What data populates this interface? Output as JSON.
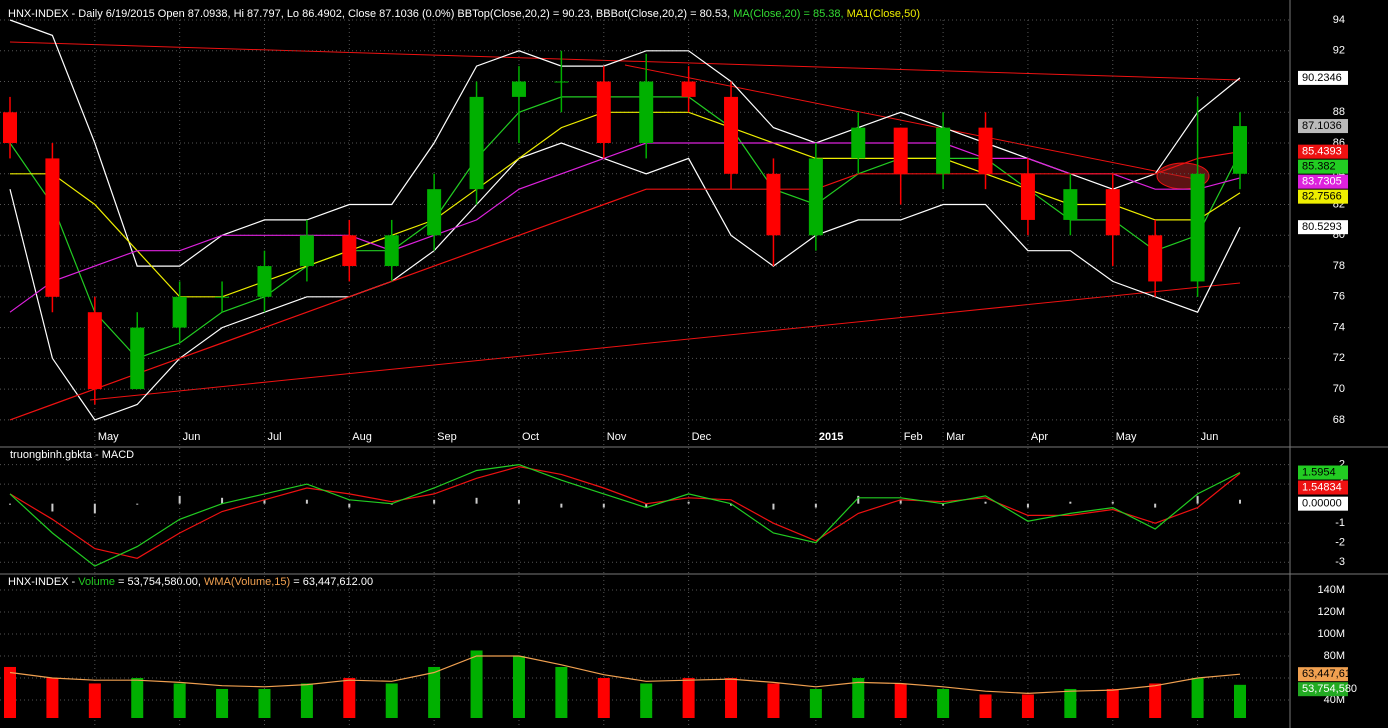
{
  "chart_data": {
    "type": "candlestick",
    "header": [
      {
        "text": "HNX-INDEX - Daily 6/19/2015 Open 87.0938, Hi 87.797, Lo 86.4902, Close 87.1036 (0.0%) BBTop(Close,20,2) = 90.23, BBBot(Close,20,2) = 80.53, ",
        "color": "#ffffff"
      },
      {
        "text": "MA(Close,20) = 85.38, ",
        "color": "#33dd33"
      },
      {
        "text": "MA1(Close,50)",
        "color": "#eeee00"
      }
    ],
    "categories": [
      null,
      null,
      "May",
      null,
      "Jun",
      null,
      "Jul",
      null,
      "Aug",
      null,
      "Sep",
      null,
      "Oct",
      null,
      "Nov",
      null,
      "Dec",
      null,
      null,
      "2015",
      null,
      "Feb",
      "Mar",
      null,
      "Apr",
      null,
      "May",
      null,
      "Jun",
      null
    ],
    "open": [
      88,
      85,
      75,
      70,
      74,
      76,
      76,
      78,
      80,
      78,
      80,
      83,
      89,
      90,
      90,
      86,
      90,
      89,
      84,
      80,
      85,
      87,
      84,
      87,
      84,
      81,
      83,
      80,
      77,
      84
    ],
    "high": [
      89,
      86,
      76,
      75,
      77,
      77,
      79,
      81,
      81,
      81,
      84,
      90,
      91,
      92,
      91,
      91.8,
      91,
      90,
      85,
      86,
      88,
      87,
      88,
      88,
      85,
      84,
      84,
      81,
      89,
      88
    ],
    "low": [
      85,
      75,
      69,
      70,
      73,
      75,
      75,
      77,
      77,
      77,
      79,
      82,
      86,
      88,
      85,
      85,
      88,
      83,
      78,
      79,
      84,
      82,
      83,
      83,
      80,
      80,
      78,
      76,
      76,
      83
    ],
    "close": [
      86,
      76,
      70,
      74,
      76,
      76,
      78,
      80,
      78,
      80,
      83,
      89,
      90,
      90,
      86,
      90,
      89,
      84,
      80,
      85,
      87,
      84,
      87,
      84,
      81,
      83,
      80,
      77,
      84,
      87.1036
    ],
    "up_color": "#00b000",
    "down_color": "#ff0000",
    "ylim": [
      66.3,
      95.3
    ],
    "yticks": [
      68,
      70,
      72,
      74,
      76,
      78,
      80,
      82,
      84,
      86,
      88,
      90,
      92,
      94
    ],
    "grid": true,
    "series": [
      {
        "name": "BBTop(Close,20,2)",
        "color": "#ffffff",
        "values": [
          94,
          93,
          86,
          78,
          78,
          80,
          81,
          81,
          82,
          82,
          86,
          91,
          92,
          91,
          91,
          92,
          92,
          90,
          87,
          86,
          87,
          88,
          87,
          86,
          85,
          84,
          83,
          84,
          88,
          90.2346
        ]
      },
      {
        "name": "BBBot(Close,20,2)",
        "color": "#ffffff",
        "values": [
          83,
          72,
          68,
          69,
          72,
          74,
          75,
          76,
          76,
          77,
          79,
          82,
          85,
          86,
          85,
          84,
          85,
          80,
          78,
          80,
          81,
          81,
          82,
          82,
          79,
          79,
          77,
          76,
          75,
          80.5293
        ]
      },
      {
        "name": "MA(Close,20)",
        "color": "#22cc22",
        "values": [
          86,
          82,
          75,
          72,
          73,
          75,
          76,
          78,
          79,
          79,
          81,
          85,
          88,
          89,
          89,
          89,
          89,
          87,
          83,
          82,
          84,
          85,
          85,
          85,
          83,
          81,
          81,
          79,
          80,
          85.382
        ]
      },
      {
        "name": "MA1(Close,50)",
        "color": "#eeee00",
        "values": [
          84,
          84,
          82,
          79,
          76,
          76,
          77,
          78,
          79,
          80,
          81,
          83,
          85,
          87,
          88,
          88,
          88,
          87,
          86,
          85,
          85,
          85,
          85,
          84,
          83,
          82,
          82,
          81,
          81,
          82.7566
        ]
      },
      {
        "color": "#dd22dd",
        "values": [
          75,
          77,
          78,
          79,
          79,
          80,
          80,
          80,
          80,
          79,
          80,
          81,
          83,
          84,
          85,
          86,
          86,
          86,
          86,
          86,
          86,
          86,
          86,
          85,
          85,
          84,
          84,
          83,
          83,
          83.7305
        ]
      },
      {
        "color": "#ee1111",
        "values": [
          68,
          69,
          70,
          71,
          72,
          73,
          74,
          75,
          76,
          77,
          78,
          79,
          80,
          81,
          82,
          83,
          83,
          83,
          83,
          83,
          84,
          84,
          84,
          84,
          84,
          84,
          84,
          84,
          85,
          85.4393
        ]
      }
    ],
    "last_values": [
      {
        "value": 90.2346,
        "color": "#ffffff"
      },
      {
        "value": 87.1036,
        "color": "#bbbbbb"
      },
      {
        "value": 85.4393,
        "color": "#ee1111"
      },
      {
        "value": 85.382,
        "color": "#22cc22"
      },
      {
        "value": 83.7305,
        "color": "#dd22dd"
      },
      {
        "value": 82.7566,
        "color": "#eeee00"
      },
      {
        "value": 80.5293,
        "color": "#ffffff"
      }
    ],
    "macd": {
      "title": "truongbinh.gbkta - MACD",
      "ylim": [
        -3.5,
        2.8
      ],
      "yticks": [
        -3,
        -2,
        -1,
        1,
        2
      ],
      "macd": {
        "color": "#22cc22",
        "values": [
          0.5,
          -1.5,
          -3.2,
          -2.2,
          -0.8,
          0,
          0.5,
          1,
          0.2,
          0,
          0.8,
          1.7,
          2,
          1.2,
          0.5,
          -0.2,
          0.5,
          0,
          -1.5,
          -2,
          0.3,
          0.3,
          0,
          0.4,
          -0.9,
          -0.5,
          -0.2,
          -1.3,
          0.5,
          1.5954
        ]
      },
      "signal": {
        "color": "#ee1111",
        "values": [
          0.5,
          -0.8,
          -2.3,
          -2.8,
          -1.5,
          -0.4,
          0.2,
          0.8,
          0.5,
          0.1,
          0.5,
          1.3,
          1.9,
          1.5,
          0.8,
          0,
          0.3,
          0.2,
          -1,
          -1.9,
          -0.5,
          0.2,
          0.1,
          0.3,
          -0.6,
          -0.6,
          -0.3,
          -1,
          -0.2,
          1.54834
        ]
      },
      "histogram": {
        "color": "#cccccc",
        "values": [
          0,
          -0.4,
          -0.5,
          0,
          0.4,
          0.3,
          0.2,
          0.2,
          -0.2,
          0,
          0.2,
          0.3,
          0.2,
          -0.2,
          -0.2,
          -0.2,
          0.1,
          -0.1,
          -0.3,
          -0.2,
          0.4,
          0.2,
          -0.1,
          0.1,
          -0.2,
          0.1,
          0.1,
          -0.2,
          0.4,
          0.2
        ]
      },
      "last_values": [
        {
          "value": 1.5954,
          "color": "#22cc22"
        },
        {
          "value": 1.54834,
          "color": "#ee1111"
        },
        {
          "value": 0,
          "label": "0.00000",
          "color": "#ffffff"
        }
      ]
    },
    "volume": {
      "header": [
        {
          "text": "HNX-INDEX - ",
          "color": "#ffffff"
        },
        {
          "text": "Volume",
          "color": "#22cc22"
        },
        {
          "text": " = 53,754,580.00, ",
          "color": "#ffffff"
        },
        {
          "text": "WMA(Volume,15)",
          "color": "#f0a050"
        },
        {
          "text": " = 63,447,612.00",
          "color": "#ffffff"
        }
      ],
      "ylim": [
        23600000,
        152700000
      ],
      "yticks": [
        {
          "value": 40000000,
          "label": "40M"
        },
        {
          "value": 60000000,
          "label": "60M"
        },
        {
          "value": 80000000,
          "label": "80M"
        },
        {
          "value": 100000000,
          "label": "100M"
        },
        {
          "value": 120000000,
          "label": "120M"
        },
        {
          "value": 140000000,
          "label": "140M"
        }
      ],
      "values": [
        70000000,
        60000000,
        55000000,
        60000000,
        55000000,
        50000000,
        50000000,
        55000000,
        60000000,
        55000000,
        70000000,
        85000000,
        80000000,
        70000000,
        60000000,
        55000000,
        60000000,
        60000000,
        55000000,
        50000000,
        60000000,
        55000000,
        50000000,
        45000000,
        45000000,
        50000000,
        50000000,
        55000000,
        60000000,
        53754580
      ],
      "wma": {
        "color": "#f0a050",
        "values": [
          65000000,
          60000000,
          58000000,
          58000000,
          56000000,
          53000000,
          52000000,
          54000000,
          58000000,
          57000000,
          65000000,
          80000000,
          80000000,
          72000000,
          63000000,
          57000000,
          58000000,
          59000000,
          56000000,
          52000000,
          56000000,
          55000000,
          52000000,
          48000000,
          46000000,
          48000000,
          49000000,
          53000000,
          60000000,
          63447612
        ]
      },
      "last_values": [
        {
          "value": 63447612,
          "label": "63,447,612",
          "color": "#f0a050"
        },
        {
          "value": 53754580,
          "label": "53,754,580",
          "color": "#22aa22"
        }
      ]
    }
  }
}
